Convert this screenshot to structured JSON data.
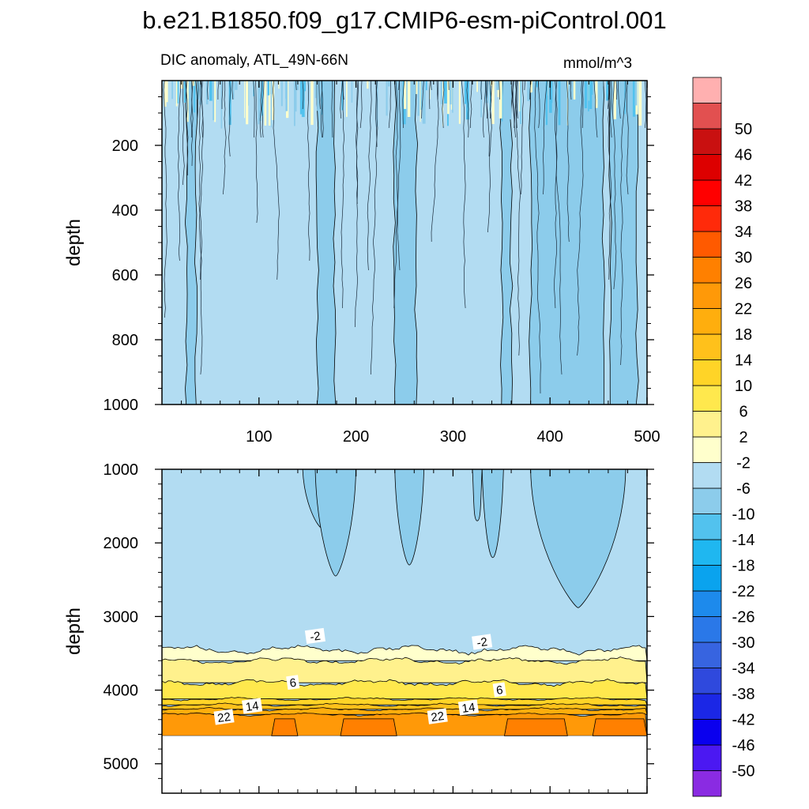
{
  "title": "b.e21.B1850.f09_g17.CMIP6-esm-piControl.001",
  "colorbar": {
    "unit_label": "mmol/m^3",
    "colors": [
      "#8a2be2",
      "#4b18f2",
      "#0a00ee",
      "#1b27e6",
      "#2f49dd",
      "#3764e0",
      "#2a78e8",
      "#1d8aec",
      "#0aa3ee",
      "#1fb7f0",
      "#52c2ee",
      "#8ccceb",
      "#b2dcf2",
      "#ffffcc",
      "#fff18d",
      "#ffe84d",
      "#ffd427",
      "#ffc11b",
      "#ffae0d",
      "#ff9908",
      "#ff8000",
      "#ff5a00",
      "#ff2a0a",
      "#ff0000",
      "#dd0000",
      "#c91010",
      "#e25050",
      "#ffb0b0"
    ],
    "labels": [
      "-50",
      "-46",
      "-42",
      "-38",
      "-34",
      "-30",
      "-26",
      "-22",
      "-18",
      "-14",
      "-10",
      "-6",
      "-2",
      "2",
      "6",
      "10",
      "14",
      "18",
      "22",
      "26",
      "30",
      "34",
      "38",
      "42",
      "46",
      "50"
    ]
  },
  "chart_data": [
    {
      "type": "contour",
      "title": "DIC anomaly, ATL_49N-66N",
      "units": "mmol/m^3",
      "xlabel": "",
      "ylabel": "depth",
      "xlim": [
        0,
        500
      ],
      "ylim": [
        1000,
        0
      ],
      "xticks": [
        100,
        200,
        300,
        400,
        500
      ],
      "xtick_labels": [
        "100",
        "200",
        "300",
        "400",
        "500"
      ],
      "yticks": [
        200,
        400,
        600,
        800,
        1000
      ],
      "ytick_labels": [
        "200",
        "400",
        "600",
        "800",
        "1000"
      ],
      "background_level": "-6 to -2",
      "darker_plumes": [
        {
          "x_start": 25,
          "x_end": 35,
          "depth_bottom": 1000
        },
        {
          "x_start": 160,
          "x_end": 178,
          "depth_bottom": 1000
        },
        {
          "x_start": 240,
          "x_end": 262,
          "depth_bottom": 1000
        },
        {
          "x_start": 350,
          "x_end": 360,
          "depth_bottom": 1000
        },
        {
          "x_start": 380,
          "x_end": 455,
          "depth_bottom": 1000
        },
        {
          "x_start": 462,
          "x_end": 490,
          "depth_bottom": 1000
        }
      ],
      "surface_band": {
        "depth_bottom": 80,
        "level": "-6 to 2, highly variable"
      }
    },
    {
      "type": "contour",
      "title": "",
      "xlabel": "",
      "ylabel": "depth",
      "xlim": [
        0,
        500
      ],
      "ylim": [
        5400,
        1000
      ],
      "yticks": [
        1000,
        2000,
        3000,
        4000,
        5000
      ],
      "ytick_labels": [
        "1000",
        "2000",
        "3000",
        "4000",
        "5000"
      ],
      "data_depth_limit": 4620,
      "deep_plumes": [
        {
          "x_start": 145,
          "x_end": 185,
          "depth_bottom": 1800
        },
        {
          "x_start": 158,
          "x_end": 200,
          "depth_bottom": 2450
        },
        {
          "x_start": 240,
          "x_end": 270,
          "depth_bottom": 2300
        },
        {
          "x_start": 320,
          "x_end": 330,
          "depth_bottom": 1700
        },
        {
          "x_start": 330,
          "x_end": 352,
          "depth_bottom": 2200
        },
        {
          "x_start": 380,
          "x_end": 478,
          "depth_bottom": 2880
        }
      ],
      "layers": [
        {
          "level": "-6 to -2",
          "depth_top": 1000,
          "depth_bottom": 3450
        },
        {
          "level": "-2 to 2",
          "depth_top": 3450,
          "depth_bottom": 3600
        },
        {
          "level": "2 to 6",
          "depth_top": 3600,
          "depth_bottom": 3900
        },
        {
          "level": "6 to 10",
          "depth_top": 3900,
          "depth_bottom": 4120
        },
        {
          "level": "10 to 14",
          "depth_top": 4120,
          "depth_bottom": 4200
        },
        {
          "level": "14 to 18",
          "depth_top": 4200,
          "depth_bottom": 4260
        },
        {
          "level": "18 to 22",
          "depth_top": 4260,
          "depth_bottom": 4330
        },
        {
          "level": "22 to 26",
          "depth_top": 4330,
          "depth_bottom": 4620
        }
      ],
      "warm_patches_26_30": [
        {
          "x_start": 113,
          "x_end": 140
        },
        {
          "x_start": 184,
          "x_end": 242
        },
        {
          "x_start": 353,
          "x_end": 418
        },
        {
          "x_start": 444,
          "x_end": 500
        }
      ],
      "contour_labels": [
        {
          "text": "-2",
          "x": 158,
          "depth": 3270
        },
        {
          "text": "-2",
          "x": 330,
          "depth": 3350
        },
        {
          "text": "6",
          "x": 135,
          "depth": 3900
        },
        {
          "text": "6",
          "x": 348,
          "depth": 4000
        },
        {
          "text": "14",
          "x": 93,
          "depth": 4220
        },
        {
          "text": "14",
          "x": 316,
          "depth": 4240
        },
        {
          "text": "22",
          "x": 64,
          "depth": 4370
        },
        {
          "text": "22",
          "x": 284,
          "depth": 4360
        }
      ]
    }
  ]
}
